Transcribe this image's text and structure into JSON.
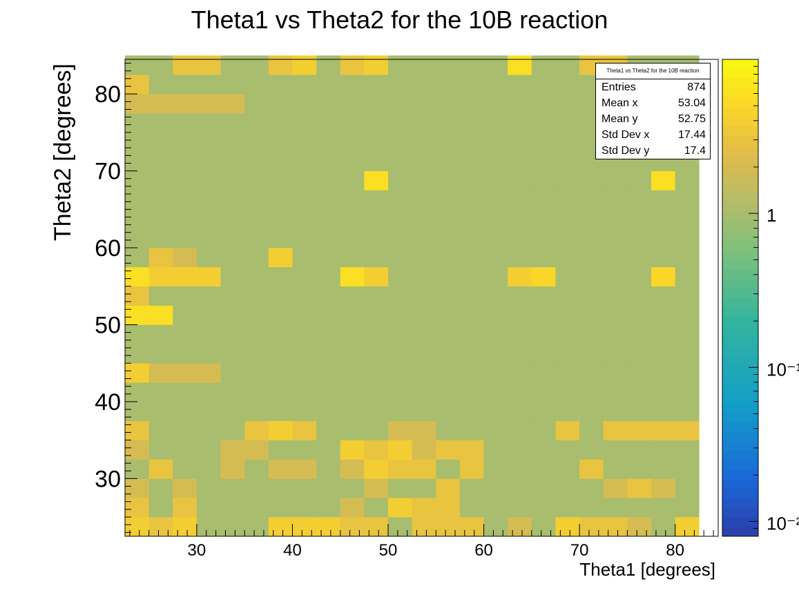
{
  "chart_data": {
    "type": "heatmap",
    "title": "Theta1 vs Theta2 for the 10B reaction",
    "xlabel": "Theta1 [degrees]",
    "ylabel": "Theta2 [degrees]",
    "xlim": [
      22.5,
      84.5
    ],
    "ylim": [
      22.5,
      84.5
    ],
    "x_bins": {
      "start": 22.5,
      "width": 2.5,
      "count": 24
    },
    "y_bins": {
      "start": 22.5,
      "width": 2.5,
      "count": 25
    },
    "x_ticks": [
      30,
      40,
      50,
      60,
      70,
      80
    ],
    "y_ticks": [
      30,
      40,
      50,
      60,
      70,
      80
    ],
    "z_scale": "log",
    "z_range": [
      0.008,
      10
    ],
    "z_ticks": [
      {
        "label": "1",
        "value": 1
      },
      {
        "label": "10⁻¹",
        "value": 0.1
      },
      {
        "label": "10⁻²",
        "value": 0.01
      }
    ],
    "counts": [
      [
        4,
        3,
        4,
        1,
        1,
        1,
        4,
        4,
        4,
        3,
        3,
        1,
        3,
        3,
        3,
        1,
        2,
        1,
        4,
        3,
        3,
        2,
        1,
        4
      ],
      [
        3,
        1,
        3,
        1,
        1,
        1,
        1,
        1,
        1,
        2,
        1,
        4,
        3,
        3,
        1,
        1,
        1,
        1,
        1,
        1,
        1,
        1,
        1,
        1
      ],
      [
        2,
        1,
        2,
        1,
        1,
        1,
        1,
        1,
        1,
        1,
        2,
        1,
        1,
        3,
        1,
        1,
        1,
        1,
        1,
        1,
        2,
        3,
        2,
        1
      ],
      [
        1,
        3,
        1,
        1,
        2,
        1,
        2,
        2,
        1,
        2,
        4,
        3,
        3,
        1,
        3,
        1,
        1,
        1,
        1,
        3,
        1,
        1,
        1,
        1
      ],
      [
        2,
        1,
        1,
        1,
        2,
        2,
        1,
        1,
        1,
        4,
        3,
        4,
        2,
        3,
        3,
        1,
        1,
        1,
        1,
        1,
        1,
        1,
        1,
        1
      ],
      [
        3,
        1,
        1,
        1,
        1,
        3,
        4,
        3,
        1,
        1,
        1,
        2,
        2,
        1,
        1,
        1,
        1,
        1,
        3,
        1,
        3,
        3,
        3,
        3
      ],
      [
        1,
        1,
        1,
        1,
        1,
        1,
        1,
        1,
        1,
        1,
        1,
        1,
        1,
        1,
        1,
        1,
        1,
        1,
        1,
        1,
        1,
        1,
        1,
        1
      ],
      [
        1,
        1,
        1,
        1,
        1,
        1,
        1,
        1,
        1,
        1,
        1,
        1,
        1,
        1,
        1,
        1,
        1,
        1,
        1,
        1,
        1,
        1,
        1,
        1
      ],
      [
        4,
        2,
        2,
        2,
        1,
        1,
        1,
        1,
        1,
        1,
        1,
        1,
        1,
        1,
        1,
        1,
        1,
        1,
        1,
        1,
        1,
        1,
        1,
        1
      ],
      [
        1,
        1,
        1,
        1,
        1,
        1,
        1,
        1,
        1,
        1,
        1,
        1,
        1,
        1,
        1,
        1,
        1,
        1,
        1,
        1,
        1,
        1,
        1,
        1
      ],
      [
        1,
        1,
        1,
        1,
        1,
        1,
        1,
        1,
        1,
        1,
        1,
        1,
        1,
        1,
        1,
        1,
        1,
        1,
        1,
        1,
        1,
        1,
        1,
        1
      ],
      [
        6,
        6,
        1,
        1,
        1,
        1,
        1,
        1,
        1,
        1,
        1,
        1,
        1,
        1,
        1,
        1,
        1,
        1,
        1,
        1,
        1,
        1,
        1,
        1
      ],
      [
        3,
        1,
        1,
        1,
        1,
        1,
        1,
        1,
        1,
        1,
        1,
        1,
        1,
        1,
        1,
        1,
        1,
        1,
        1,
        1,
        1,
        1,
        1,
        1
      ],
      [
        6,
        4,
        4,
        4,
        1,
        1,
        1,
        1,
        1,
        6,
        4,
        1,
        1,
        1,
        1,
        1,
        4,
        5,
        1,
        1,
        1,
        1,
        5,
        1
      ],
      [
        1,
        3,
        2,
        1,
        1,
        1,
        4,
        1,
        1,
        1,
        1,
        1,
        1,
        1,
        1,
        1,
        1,
        1,
        1,
        1,
        1,
        1,
        1,
        1
      ],
      [
        1,
        1,
        1,
        1,
        1,
        1,
        1,
        1,
        1,
        1,
        1,
        1,
        1,
        1,
        1,
        1,
        1,
        1,
        1,
        1,
        1,
        1,
        1,
        1
      ],
      [
        1,
        1,
        1,
        1,
        1,
        1,
        1,
        1,
        1,
        1,
        1,
        1,
        1,
        1,
        1,
        1,
        1,
        1,
        1,
        1,
        1,
        1,
        1,
        1
      ],
      [
        1,
        1,
        1,
        1,
        1,
        1,
        1,
        1,
        1,
        1,
        1,
        1,
        1,
        1,
        1,
        1,
        1,
        1,
        1,
        1,
        1,
        1,
        1,
        1
      ],
      [
        1,
        1,
        1,
        1,
        1,
        1,
        1,
        1,
        1,
        1,
        6,
        1,
        1,
        1,
        1,
        1,
        1,
        1,
        1,
        1,
        1,
        1,
        6,
        1
      ],
      [
        1,
        1,
        1,
        1,
        1,
        1,
        1,
        1,
        1,
        1,
        1,
        1,
        1,
        1,
        1,
        1,
        1,
        1,
        1,
        1,
        1,
        1,
        1,
        1
      ],
      [
        1,
        1,
        1,
        1,
        1,
        1,
        1,
        1,
        1,
        1,
        1,
        1,
        1,
        1,
        1,
        1,
        1,
        1,
        1,
        1,
        1,
        1,
        1,
        1
      ],
      [
        1,
        1,
        1,
        1,
        1,
        1,
        1,
        1,
        1,
        1,
        1,
        1,
        1,
        1,
        1,
        1,
        1,
        1,
        1,
        1,
        1,
        1,
        1,
        1
      ],
      [
        2,
        2,
        2,
        2,
        2,
        1,
        1,
        1,
        1,
        1,
        1,
        1,
        1,
        1,
        1,
        1,
        1,
        1,
        1,
        1,
        1,
        1,
        1,
        1
      ],
      [
        3,
        1,
        1,
        1,
        1,
        1,
        1,
        1,
        1,
        1,
        1,
        1,
        1,
        1,
        1,
        1,
        1,
        1,
        1,
        1,
        1,
        1,
        1,
        1
      ],
      [
        1,
        1,
        3,
        3,
        1,
        1,
        3,
        4,
        1,
        3,
        4,
        1,
        1,
        1,
        1,
        1,
        6,
        1,
        1,
        3,
        3,
        1,
        1,
        1
      ]
    ],
    "stats_box": {
      "title": "Theta1 vs Theta2 for the 10B reaction",
      "rows": [
        {
          "label": "Entries",
          "value": "874"
        },
        {
          "label": "Mean x",
          "value": "53.04"
        },
        {
          "label": "Mean y",
          "value": "52.75"
        },
        {
          "label": "Std Dev x",
          "value": "17.44"
        },
        {
          "label": "Std Dev y",
          "value": "17.4"
        }
      ]
    }
  },
  "colors": {
    "frame": "#000000",
    "palette_low": "#2b3ea8",
    "palette_mid": "#b4bc6a",
    "palette_high": "#f9fa0f"
  }
}
